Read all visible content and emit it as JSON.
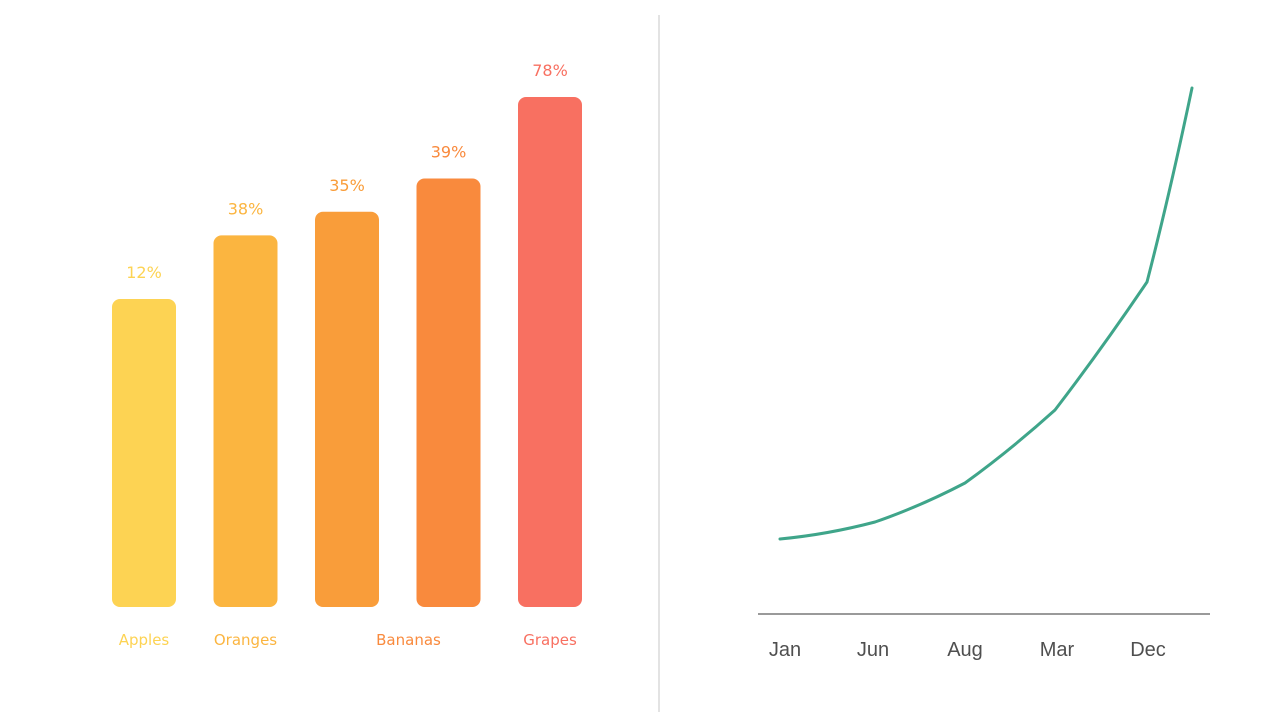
{
  "chart_data": [
    {
      "type": "bar",
      "categories": [
        "Apples",
        "Oranges",
        "",
        "Bananas",
        "Grapes"
      ],
      "values": [
        12,
        38,
        35,
        39,
        78
      ],
      "value_labels": [
        "12%",
        "38%",
        "35%",
        "39%",
        "78%"
      ],
      "colors": [
        "#fdd353",
        "#fbb540",
        "#f99d3a",
        "#f98a3d",
        "#f87061"
      ],
      "title": "",
      "xlabel": "",
      "ylabel": "",
      "grid": false
    },
    {
      "type": "line",
      "x": [
        "Jan",
        "Jun",
        "Aug",
        "Mar",
        "Dec"
      ],
      "y": [
        5,
        12,
        30,
        58,
        110
      ],
      "color": "#3fa58a",
      "axis_color": "#9a9a9a",
      "title": "",
      "xlabel": "",
      "ylabel": "",
      "grid": false
    }
  ],
  "divider_color": "#c7c7c7"
}
